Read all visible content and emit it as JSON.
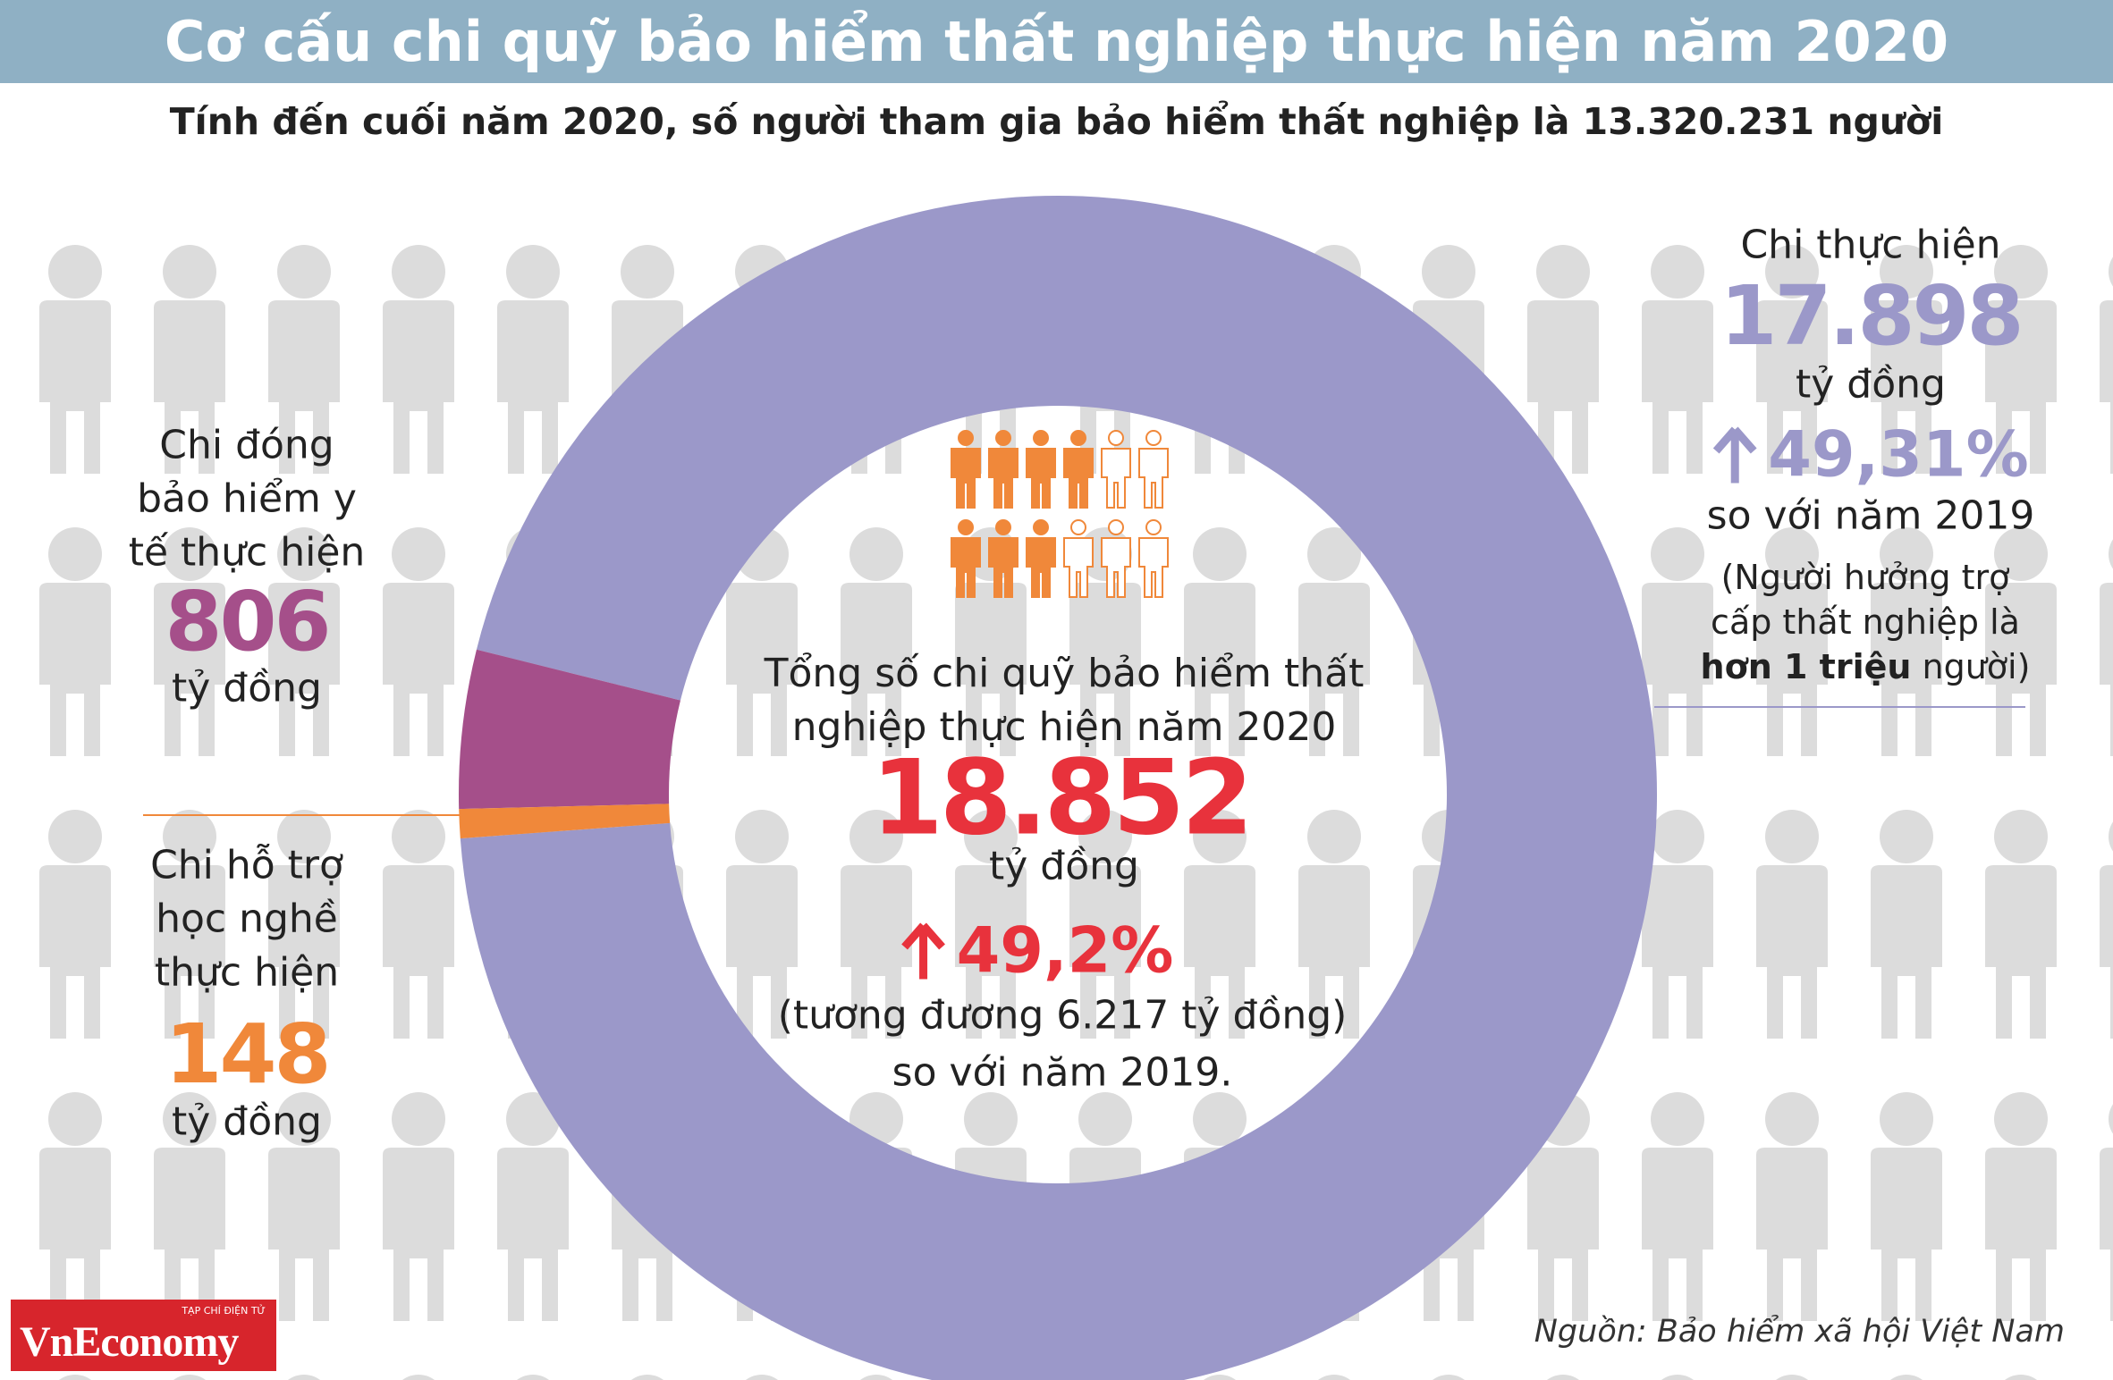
{
  "chart_data": {
    "type": "pie",
    "donut": true,
    "title": "Cơ cấu chi quỹ bảo hiểm thất nghiệp thực hiện năm 2020",
    "subtitle": "Tính đến cuối năm 2020, số người tham gia bảo hiểm thất nghiệp là 13.320.231 người",
    "categories": [
      "Chi thực hiện",
      "Chi đóng bảo hiểm y tế thực hiện",
      "Chi hỗ trợ học nghề thực hiện"
    ],
    "values": [
      17898,
      806,
      148
    ],
    "value_labels": [
      "17.898",
      "806",
      "148"
    ],
    "colors": [
      "#9b98c9",
      "#a54f8a",
      "#f0883a"
    ],
    "unit": "tỷ đồng",
    "center_label": "Tổng số chi quỹ bảo hiểm thất nghiệp thực hiện năm 2020",
    "center_value": "18.852",
    "center_change": "49,2%",
    "center_note": [
      "(tương đương 6.217 tỷ đồng)",
      "so với năm 2019."
    ],
    "right_change": "49,31%",
    "right_compare": "so với năm 2019",
    "right_note": {
      "prefix": "(Người hưởng trợ cấp thất nghiệp là",
      "bold": "hơn 1 triệu",
      "suffix": "người)"
    },
    "source": "Nguồn: Bảo hiểm xã hội Việt Nam",
    "brand": {
      "tagline": "TẠP CHÍ ĐIỆN TỬ",
      "name": "VnEconomy"
    }
  }
}
